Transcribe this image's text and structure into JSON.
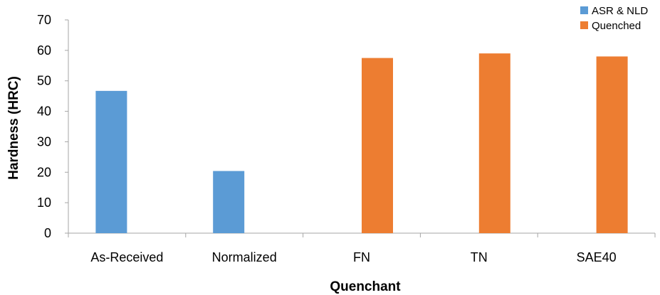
{
  "chart_data": {
    "type": "bar",
    "categories": [
      "As-Received",
      "Normalized",
      "FN",
      "TN",
      "SAE40"
    ],
    "series": [
      {
        "name": "ASR & NLD",
        "color": "#5B9BD5",
        "values": [
          46.7,
          20.4,
          null,
          null,
          null
        ]
      },
      {
        "name": "Quenched",
        "color": "#ED7D31",
        "values": [
          null,
          null,
          57.5,
          59.0,
          58.0
        ]
      }
    ],
    "xlabel": "Quenchant",
    "ylabel": "Hardness (HRC)",
    "ylim": [
      0,
      70
    ],
    "yticks": [
      0,
      10,
      20,
      30,
      40,
      50,
      60,
      70
    ],
    "grid": false,
    "legend_position": "top-right"
  }
}
